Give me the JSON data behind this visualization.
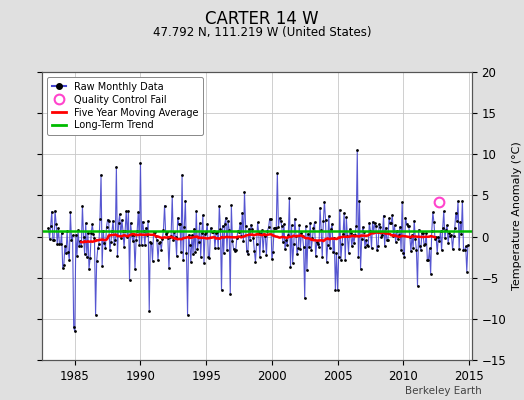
{
  "title": "CARTER 14 W",
  "subtitle": "47.792 N, 111.219 W (United States)",
  "ylabel": "Temperature Anomaly (°C)",
  "watermark": "Berkeley Earth",
  "xlim": [
    1982.5,
    2015.2
  ],
  "ylim": [
    -15,
    20
  ],
  "yticks": [
    -15,
    -10,
    -5,
    0,
    5,
    10,
    15,
    20
  ],
  "xticks": [
    1985,
    1990,
    1995,
    2000,
    2005,
    2010,
    2015
  ],
  "bg_color": "#e0e0e0",
  "plot_bg_color": "#ffffff",
  "grid_color": "#c8c8c8",
  "raw_line_color": "#4444cc",
  "raw_dot_color": "#000000",
  "moving_avg_color": "#ff0000",
  "trend_color": "#00bb00",
  "qc_fail_color": "#ff44cc",
  "start_year": 1983,
  "end_year": 2014,
  "trend_intercept": 0.65,
  "trend_slope": 0.0
}
